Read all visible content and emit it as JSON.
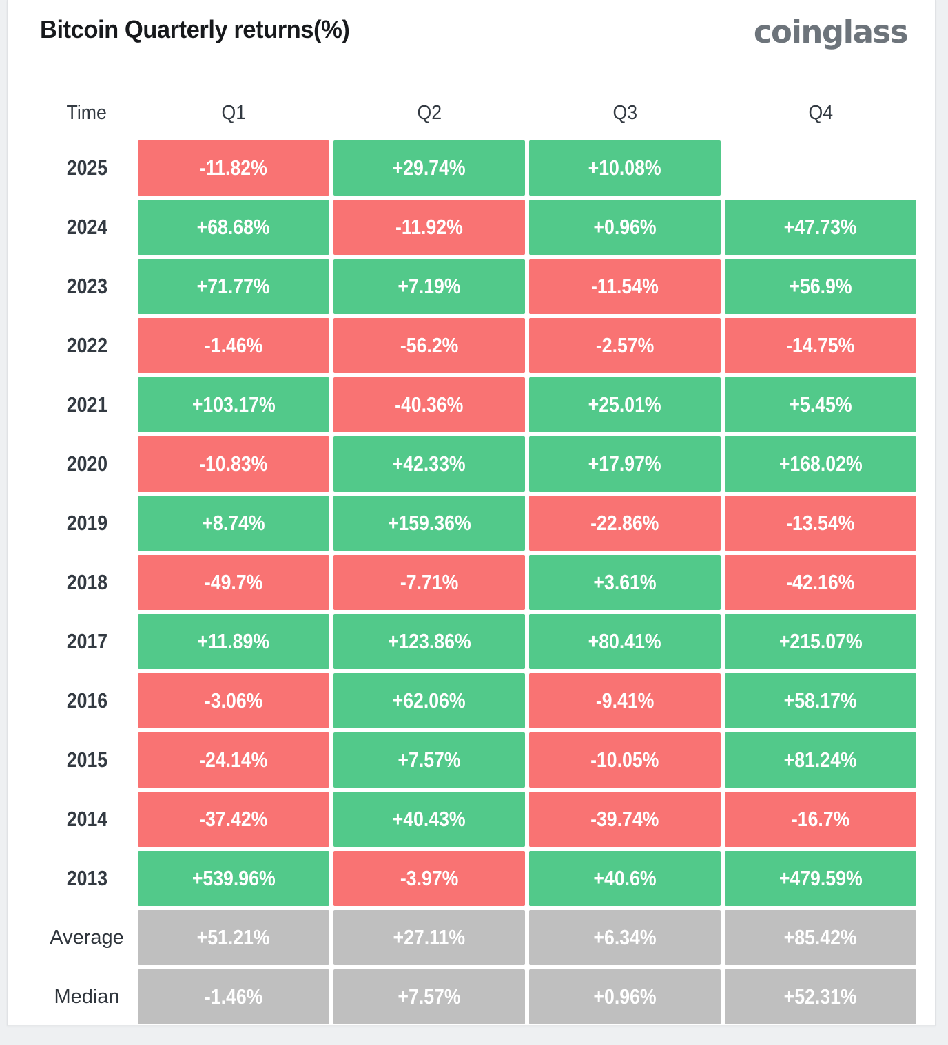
{
  "header": {
    "title": "Bitcoin Quarterly returns(%)",
    "logo": "coinglass"
  },
  "colors": {
    "positive": "#52c98a",
    "negative": "#f97373",
    "neutral": "#bfbfbf",
    "title_text": "#17191c",
    "logo_text": "#6d747b",
    "cell_text": "#ffffff",
    "label_text": "#333a42",
    "page_background": "#eef0f2",
    "card_background": "#ffffff"
  },
  "table": {
    "columns": [
      "Time",
      "Q1",
      "Q2",
      "Q3",
      "Q4"
    ],
    "rows": [
      {
        "label": "2025",
        "type": "year",
        "values": [
          "-11.82%",
          "+29.74%",
          "+10.08%",
          ""
        ]
      },
      {
        "label": "2024",
        "type": "year",
        "values": [
          "+68.68%",
          "-11.92%",
          "+0.96%",
          "+47.73%"
        ]
      },
      {
        "label": "2023",
        "type": "year",
        "values": [
          "+71.77%",
          "+7.19%",
          "-11.54%",
          "+56.9%"
        ]
      },
      {
        "label": "2022",
        "type": "year",
        "values": [
          "-1.46%",
          "-56.2%",
          "-2.57%",
          "-14.75%"
        ]
      },
      {
        "label": "2021",
        "type": "year",
        "values": [
          "+103.17%",
          "-40.36%",
          "+25.01%",
          "+5.45%"
        ]
      },
      {
        "label": "2020",
        "type": "year",
        "values": [
          "-10.83%",
          "+42.33%",
          "+17.97%",
          "+168.02%"
        ]
      },
      {
        "label": "2019",
        "type": "year",
        "values": [
          "+8.74%",
          "+159.36%",
          "-22.86%",
          "-13.54%"
        ]
      },
      {
        "label": "2018",
        "type": "year",
        "values": [
          "-49.7%",
          "-7.71%",
          "+3.61%",
          "-42.16%"
        ]
      },
      {
        "label": "2017",
        "type": "year",
        "values": [
          "+11.89%",
          "+123.86%",
          "+80.41%",
          "+215.07%"
        ]
      },
      {
        "label": "2016",
        "type": "year",
        "values": [
          "-3.06%",
          "+62.06%",
          "-9.41%",
          "+58.17%"
        ]
      },
      {
        "label": "2015",
        "type": "year",
        "values": [
          "-24.14%",
          "+7.57%",
          "-10.05%",
          "+81.24%"
        ]
      },
      {
        "label": "2014",
        "type": "year",
        "values": [
          "-37.42%",
          "+40.43%",
          "-39.74%",
          "-16.7%"
        ]
      },
      {
        "label": "2013",
        "type": "year",
        "values": [
          "+539.96%",
          "-3.97%",
          "+40.6%",
          "+479.59%"
        ]
      },
      {
        "label": "Average",
        "type": "summary",
        "values": [
          "+51.21%",
          "+27.11%",
          "+6.34%",
          "+85.42%"
        ]
      },
      {
        "label": "Median",
        "type": "summary",
        "values": [
          "-1.46%",
          "+7.57%",
          "+0.96%",
          "+52.31%"
        ]
      }
    ]
  },
  "chart_data": {
    "type": "heatmap",
    "title": "Bitcoin Quarterly returns(%)",
    "x_categories": [
      "Q1",
      "Q2",
      "Q3",
      "Q4"
    ],
    "y_categories": [
      "2025",
      "2024",
      "2023",
      "2022",
      "2021",
      "2020",
      "2019",
      "2018",
      "2017",
      "2016",
      "2015",
      "2014",
      "2013",
      "Average",
      "Median"
    ],
    "values": [
      [
        -11.82,
        29.74,
        10.08,
        null
      ],
      [
        68.68,
        -11.92,
        0.96,
        47.73
      ],
      [
        71.77,
        7.19,
        -11.54,
        56.9
      ],
      [
        -1.46,
        -56.2,
        -2.57,
        -14.75
      ],
      [
        103.17,
        -40.36,
        25.01,
        5.45
      ],
      [
        -10.83,
        42.33,
        17.97,
        168.02
      ],
      [
        8.74,
        159.36,
        -22.86,
        -13.54
      ],
      [
        -49.7,
        -7.71,
        3.61,
        -42.16
      ],
      [
        11.89,
        123.86,
        80.41,
        215.07
      ],
      [
        -3.06,
        62.06,
        -9.41,
        58.17
      ],
      [
        -24.14,
        7.57,
        -10.05,
        81.24
      ],
      [
        -37.42,
        40.43,
        -39.74,
        -16.7
      ],
      [
        539.96,
        -3.97,
        40.6,
        479.59
      ],
      [
        51.21,
        27.11,
        6.34,
        85.42
      ],
      [
        -1.46,
        7.57,
        0.96,
        52.31
      ]
    ],
    "color_rule": "green = positive return, red = negative return, gray = summary rows (Average/Median)",
    "legend": "none",
    "grid": "off"
  }
}
